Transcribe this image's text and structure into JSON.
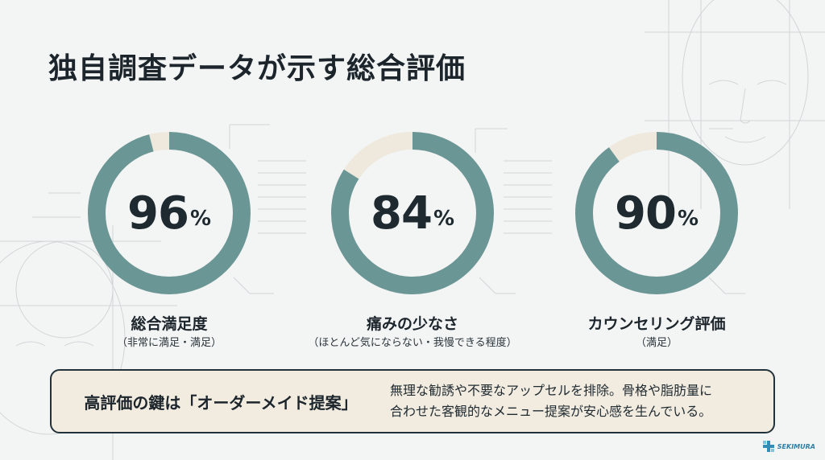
{
  "title": "独自調査データが示す総合評価",
  "metrics": [
    {
      "value": "96",
      "unit": "%",
      "fraction": 0.96,
      "label": "総合満足度",
      "sub": "（非常に満足・満足）"
    },
    {
      "value": "84",
      "unit": "%",
      "fraction": 0.84,
      "label": "痛みの少なさ",
      "sub": "（ほとんど気にならない・我慢できる程度）"
    },
    {
      "value": "90",
      "unit": "%",
      "fraction": 0.9,
      "label": "カウンセリング評価",
      "sub": "（満足）"
    }
  ],
  "key": {
    "heading": "高評価の鍵は「オーダーメイド提案」",
    "line1": "無理な勧誘や不要なアップセルを排除。骨格や脂肪量に",
    "line2": "合わせた客観的なメニュー提案が安心感を生んでいる。"
  },
  "logo": {
    "text": "SEKIMURA",
    "icon": "cross-logo-icon"
  },
  "colors": {
    "ring": "#6b9696",
    "remainder": "#efe8dc",
    "text": "#1c252b"
  }
}
